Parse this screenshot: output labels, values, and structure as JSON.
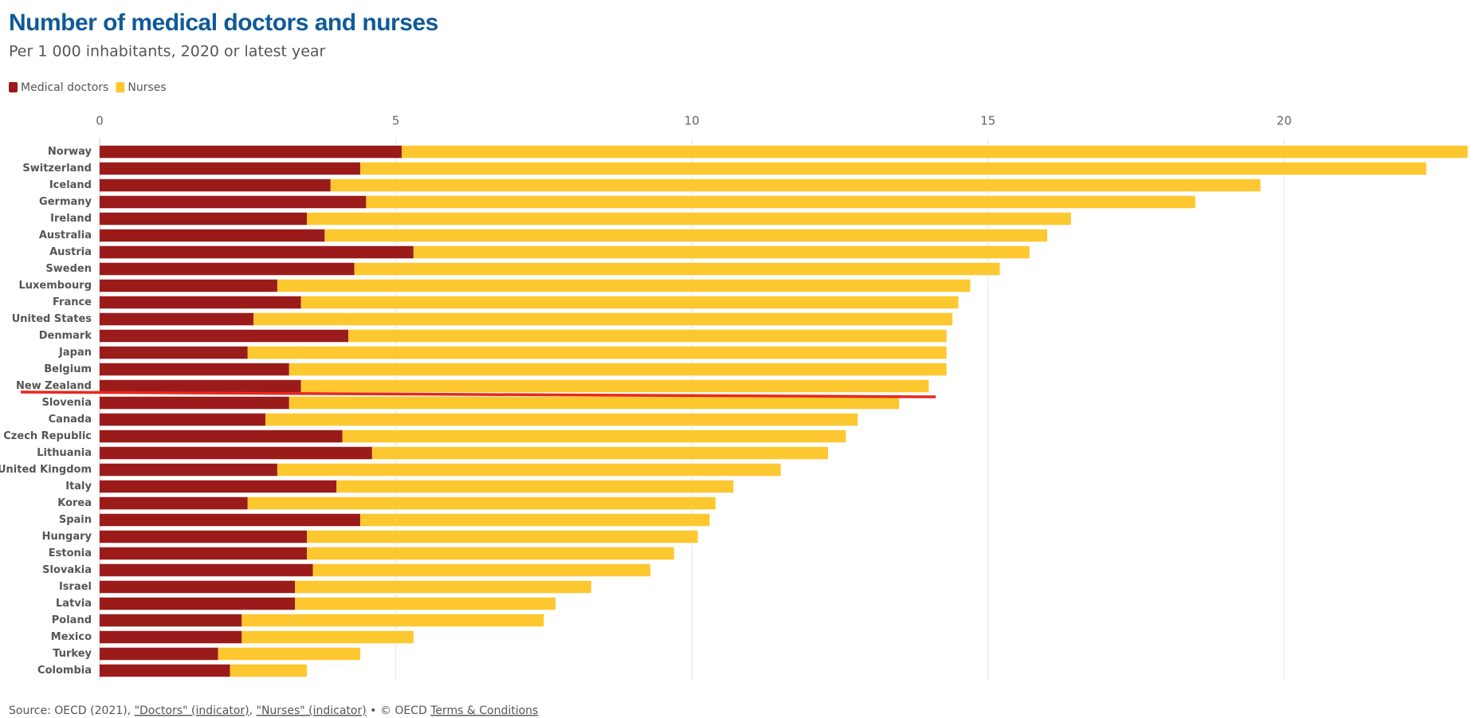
{
  "chart_data": {
    "type": "bar",
    "orientation": "horizontal",
    "stacked": true,
    "title": "Number of medical doctors and nurses",
    "subtitle": "Per 1 000 inhabitants, 2020 or latest year",
    "categories": [
      "Norway",
      "Switzerland",
      "Iceland",
      "Germany",
      "Ireland",
      "Australia",
      "Austria",
      "Sweden",
      "Luxembourg",
      "France",
      "United States",
      "Denmark",
      "Japan",
      "Belgium",
      "New Zealand",
      "Slovenia",
      "Canada",
      "Czech Republic",
      "Lithuania",
      "United Kingdom",
      "Italy",
      "Korea",
      "Spain",
      "Hungary",
      "Estonia",
      "Slovakia",
      "Israel",
      "Latvia",
      "Poland",
      "Mexico",
      "Turkey",
      "Colombia"
    ],
    "series": [
      {
        "name": "Medical doctors",
        "color": "#9b1b1b",
        "values": [
          5.1,
          4.4,
          3.9,
          4.5,
          3.5,
          3.8,
          5.3,
          4.3,
          3.0,
          3.4,
          2.6,
          4.2,
          2.5,
          3.2,
          3.4,
          3.2,
          2.8,
          4.1,
          4.6,
          3.0,
          4.0,
          2.5,
          4.4,
          3.5,
          3.5,
          3.6,
          3.3,
          3.3,
          2.4,
          2.4,
          2.0,
          2.2
        ]
      },
      {
        "name": "Nurses",
        "color": "#fdc82f",
        "values": [
          18.0,
          18.0,
          15.7,
          14.0,
          12.9,
          12.2,
          10.4,
          10.9,
          11.7,
          11.1,
          11.8,
          10.1,
          11.8,
          11.1,
          10.6,
          10.3,
          10.0,
          8.5,
          7.7,
          8.5,
          6.7,
          7.9,
          5.9,
          6.6,
          6.2,
          5.7,
          5.0,
          4.4,
          5.1,
          2.9,
          2.4,
          1.3
        ]
      }
    ],
    "xlim": [
      0,
      23.2
    ],
    "xticks": [
      0,
      5,
      10,
      15,
      20
    ],
    "grid": true,
    "legend": "top-left",
    "source_label": "Source: OECD (2021),",
    "links": [
      "\"Doctors\" (indicator)",
      "\"Nurses\" (indicator)"
    ],
    "separator": ",",
    "copyright": "• © OECD",
    "terms": "Terms & Conditions"
  }
}
